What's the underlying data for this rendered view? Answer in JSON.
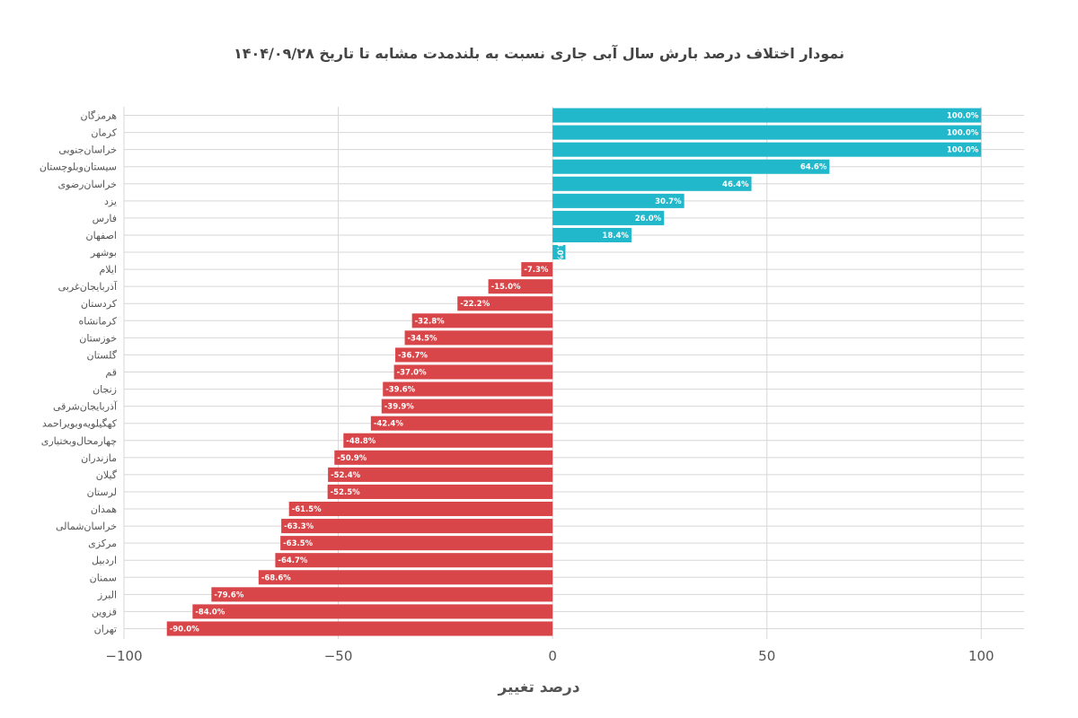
{
  "chart_data": {
    "type": "bar",
    "orientation": "horizontal",
    "title": "نمودار اختلاف درصد بارش سال آبی جاری نسبت به بلندمدت مشابه تا تاریخ ۱۴۰۴/۰۹/۲۸",
    "xlabel": "درصد تغییر",
    "ylabel": "",
    "xlim": [
      -100,
      110
    ],
    "xticks": [
      -100,
      -50,
      0,
      50,
      100
    ],
    "xtick_labels": [
      "−100",
      "−50",
      "0",
      "50",
      "100"
    ],
    "grid": true,
    "categories": [
      "هرمزگان",
      "کرمان",
      "خراسان‌جنوبی",
      "سیستان‌وبلوچستان",
      "خراسان‌رضوی",
      "یزد",
      "فارس",
      "اصفهان",
      "بوشهر",
      "ایلام",
      "آذربایجان‌غربی",
      "کردستان",
      "کرمانشاه",
      "خوزستان",
      "گلستان",
      "قم",
      "زنجان",
      "آذربایجان‌شرقی",
      "کهگیلویه‌وبویراحمد",
      "چهارمحال‌وبختیاری",
      "مازندران",
      "گیلان",
      "لرستان",
      "همدان",
      "خراسان‌شمالی",
      "مرکزی",
      "اردبیل",
      "سمنان",
      "البرز",
      "قزوین",
      "تهران"
    ],
    "values": [
      100.0,
      100.0,
      100.0,
      64.6,
      46.4,
      30.7,
      26.0,
      18.4,
      3.0,
      -7.3,
      -15.0,
      -22.2,
      -32.8,
      -34.5,
      -36.7,
      -37.0,
      -39.6,
      -39.9,
      -42.4,
      -48.8,
      -50.9,
      -52.4,
      -52.5,
      -61.5,
      -63.3,
      -63.5,
      -64.7,
      -68.6,
      -79.6,
      -84.0,
      -90.0
    ],
    "value_labels": [
      "100.0%",
      "100.0%",
      "100.0%",
      "64.6%",
      "46.4%",
      "30.7%",
      "26.0%",
      "18.4%",
      "3.0%",
      "-7.3%",
      "-15.0%",
      "-22.2%",
      "-32.8%",
      "-34.5%",
      "-36.7%",
      "-37.0%",
      "-39.6%",
      "-39.9%",
      "-42.4%",
      "-48.8%",
      "-50.9%",
      "-52.4%",
      "-52.5%",
      "-61.5%",
      "-63.3%",
      "-63.5%",
      "-64.7%",
      "-68.6%",
      "-79.6%",
      "-84.0%",
      "-90.0%"
    ],
    "colors": {
      "positive": "#22b8cc",
      "negative": "#d9464a"
    }
  }
}
